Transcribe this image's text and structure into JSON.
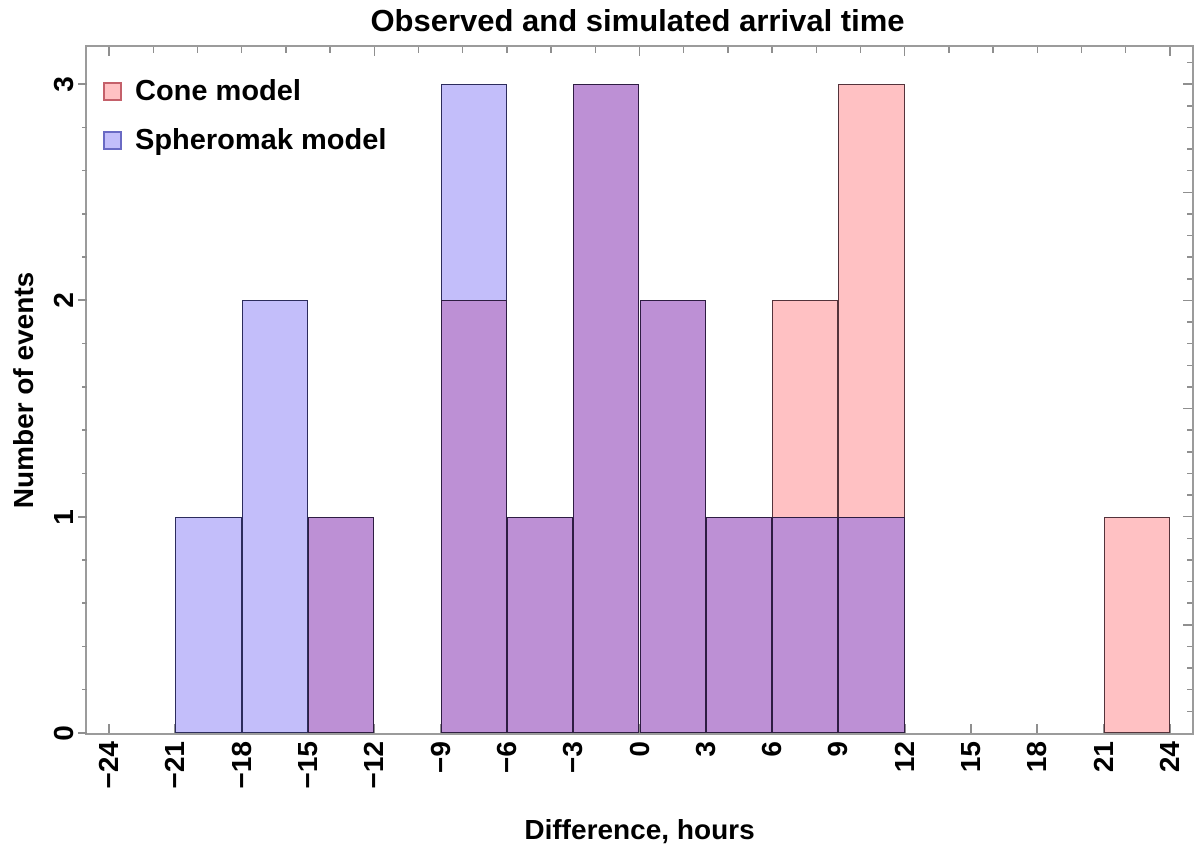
{
  "chart_data": {
    "type": "histogram",
    "title": "Observed and simulated arrival time",
    "xlabel": "Difference, hours",
    "ylabel": "Number of events",
    "bin_width_hours": 3,
    "bin_starts": [
      -24,
      -21,
      -18,
      -15,
      -12,
      -9,
      -6,
      -3,
      0,
      3,
      6,
      9,
      12,
      15,
      18,
      21
    ],
    "series": [
      {
        "name": "Cone model",
        "fill": "#ffc1c3",
        "edge": "#54333b",
        "legend_edge": "#c4606a",
        "values": [
          0,
          0,
          0,
          1,
          0,
          2,
          1,
          3,
          2,
          1,
          2,
          3,
          0,
          0,
          0,
          1
        ]
      },
      {
        "name": "Spheromak model",
        "fill": "#c3befa",
        "edge": "#2c2c5c",
        "legend_edge": "#6a6ac4",
        "values": [
          0,
          1,
          2,
          1,
          0,
          3,
          1,
          3,
          2,
          1,
          1,
          1,
          0,
          0,
          0,
          0
        ]
      }
    ],
    "overlap_fill": "#bd90d5",
    "overlap_edge": "#2e1d42",
    "x_ticks": {
      "values": [
        -24,
        -21,
        -18,
        -15,
        -12,
        -9,
        -6,
        -3,
        0,
        3,
        6,
        9,
        12,
        15,
        18,
        21,
        24
      ],
      "labels": [
        "−24",
        "−21",
        "−18",
        "−15",
        "−12",
        "−9",
        "−6",
        "−3",
        "0",
        "3",
        "6",
        "9",
        "12",
        "15",
        "18",
        "21",
        "24"
      ]
    },
    "y_ticks": {
      "values": [
        0,
        1,
        2,
        3
      ],
      "labels": [
        "0",
        "1",
        "2",
        "3"
      ]
    },
    "xlim": [
      -25,
      25
    ],
    "ylim": [
      0,
      3.17
    ],
    "legend_position": "top-left",
    "grid": false,
    "frame_color": "#9b9b9b",
    "tick_color": "#8f8f8f"
  }
}
